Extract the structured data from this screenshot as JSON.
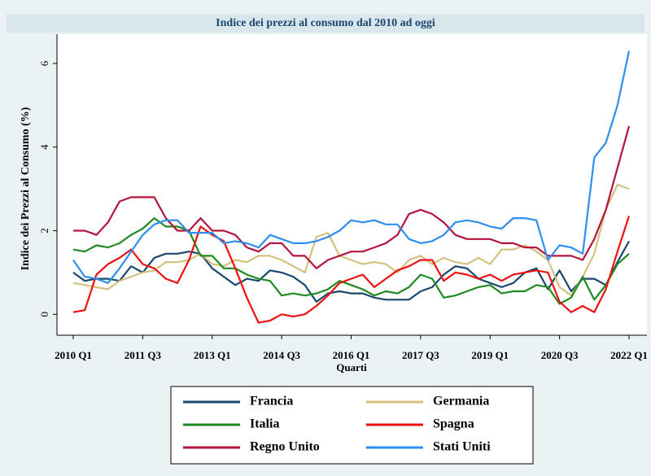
{
  "chart_data": {
    "type": "line",
    "title": "Indice dei prezzi al consumo dal 2010 ad oggi",
    "x_label": "Quarti",
    "y_label": "Indice dei Prezzi al Consumo (%)",
    "categories": [
      "2010 Q1",
      null,
      null,
      null,
      null,
      null,
      "2011 Q3",
      null,
      null,
      null,
      null,
      null,
      "2013 Q1",
      null,
      null,
      null,
      null,
      null,
      "2014 Q3",
      null,
      null,
      null,
      null,
      null,
      "2016 Q1",
      null,
      null,
      null,
      null,
      null,
      "2017 Q3",
      null,
      null,
      null,
      null,
      null,
      "2019 Q1",
      null,
      null,
      null,
      null,
      null,
      "2020 Q3",
      null,
      null,
      null,
      null,
      null,
      "2022 Q1"
    ],
    "ylim": [
      -0.5,
      6.7
    ],
    "yticks": [
      0,
      2,
      4,
      6
    ],
    "grid": false,
    "legend": "bottom",
    "series": [
      {
        "name": "Francia",
        "color": "#1a476f",
        "values": [
          1.0,
          0.8,
          0.85,
          0.85,
          0.8,
          1.15,
          1.0,
          1.35,
          1.45,
          1.45,
          1.5,
          1.45,
          1.1,
          0.9,
          0.7,
          0.85,
          0.8,
          1.05,
          1.0,
          0.9,
          0.7,
          0.3,
          0.5,
          0.55,
          0.5,
          0.5,
          0.4,
          0.35,
          0.35,
          0.35,
          0.55,
          0.65,
          0.95,
          1.15,
          1.1,
          0.85,
          0.75,
          0.65,
          0.75,
          1.0,
          1.1,
          0.6,
          1.05,
          0.55,
          0.85,
          0.85,
          0.7,
          1.25,
          1.75
        ]
      },
      {
        "name": "Germania",
        "color": "#d2c27e",
        "values": [
          0.75,
          0.7,
          0.65,
          0.6,
          0.8,
          0.9,
          1.0,
          1.05,
          1.25,
          1.25,
          1.3,
          1.45,
          1.2,
          1.15,
          1.3,
          1.25,
          1.4,
          1.4,
          1.3,
          1.15,
          1.0,
          1.85,
          1.95,
          1.4,
          1.3,
          1.2,
          1.25,
          1.2,
          1.0,
          1.3,
          1.4,
          1.2,
          1.35,
          1.25,
          1.2,
          1.35,
          1.2,
          1.55,
          1.55,
          1.65,
          1.5,
          1.3,
          0.65,
          0.45,
          0.9,
          1.45,
          2.5,
          3.1,
          3.0
        ]
      },
      {
        "name": "Italia",
        "color": "#1f8a1f",
        "values": [
          1.55,
          1.5,
          1.65,
          1.6,
          1.7,
          1.9,
          2.05,
          2.3,
          2.1,
          2.1,
          2.0,
          1.4,
          1.4,
          1.1,
          1.1,
          0.95,
          0.85,
          0.8,
          0.45,
          0.5,
          0.45,
          0.5,
          0.6,
          0.8,
          0.7,
          0.6,
          0.45,
          0.55,
          0.5,
          0.65,
          0.95,
          0.85,
          0.4,
          0.45,
          0.55,
          0.65,
          0.7,
          0.5,
          0.55,
          0.55,
          0.7,
          0.65,
          0.25,
          0.4,
          0.9,
          0.35,
          0.7,
          1.2,
          1.45
        ]
      },
      {
        "name": "Spagna",
        "color": "#ee1111",
        "values": [
          0.05,
          0.1,
          0.95,
          1.2,
          1.35,
          1.55,
          1.2,
          1.1,
          0.85,
          0.75,
          1.3,
          2.1,
          1.9,
          1.75,
          1.1,
          0.4,
          -0.2,
          -0.15,
          0.0,
          -0.05,
          0.0,
          0.2,
          0.45,
          0.75,
          0.85,
          0.95,
          0.65,
          0.85,
          1.05,
          1.15,
          1.3,
          1.3,
          0.8,
          1.0,
          0.95,
          0.85,
          0.95,
          0.8,
          0.95,
          1.0,
          1.05,
          1.0,
          0.3,
          0.05,
          0.2,
          0.05,
          0.6,
          1.5,
          2.35
        ]
      },
      {
        "name": "Regno Unito",
        "color": "#b5143c",
        "values": [
          2.0,
          2.0,
          1.9,
          2.2,
          2.7,
          2.8,
          2.8,
          2.8,
          2.3,
          2.0,
          2.0,
          2.3,
          2.0,
          2.0,
          1.9,
          1.6,
          1.5,
          1.7,
          1.7,
          1.4,
          1.4,
          1.1,
          1.3,
          1.4,
          1.5,
          1.5,
          1.6,
          1.7,
          1.9,
          2.4,
          2.5,
          2.4,
          2.2,
          1.9,
          1.8,
          1.8,
          1.8,
          1.7,
          1.7,
          1.6,
          1.6,
          1.4,
          1.4,
          1.4,
          1.3,
          1.8,
          2.5,
          3.5,
          4.5
        ]
      },
      {
        "name": "Stati Uniti",
        "color": "#2e8ef0",
        "values": [
          1.3,
          0.9,
          0.85,
          0.75,
          1.1,
          1.5,
          1.9,
          2.15,
          2.25,
          2.25,
          1.95,
          1.95,
          1.95,
          1.7,
          1.75,
          1.7,
          1.6,
          1.9,
          1.8,
          1.7,
          1.7,
          1.75,
          1.85,
          2.0,
          2.25,
          2.2,
          2.25,
          2.15,
          2.15,
          1.8,
          1.7,
          1.75,
          1.9,
          2.2,
          2.25,
          2.2,
          2.1,
          2.05,
          2.3,
          2.3,
          2.25,
          1.3,
          1.65,
          1.6,
          1.45,
          3.75,
          4.1,
          5.0,
          6.3
        ]
      }
    ]
  }
}
